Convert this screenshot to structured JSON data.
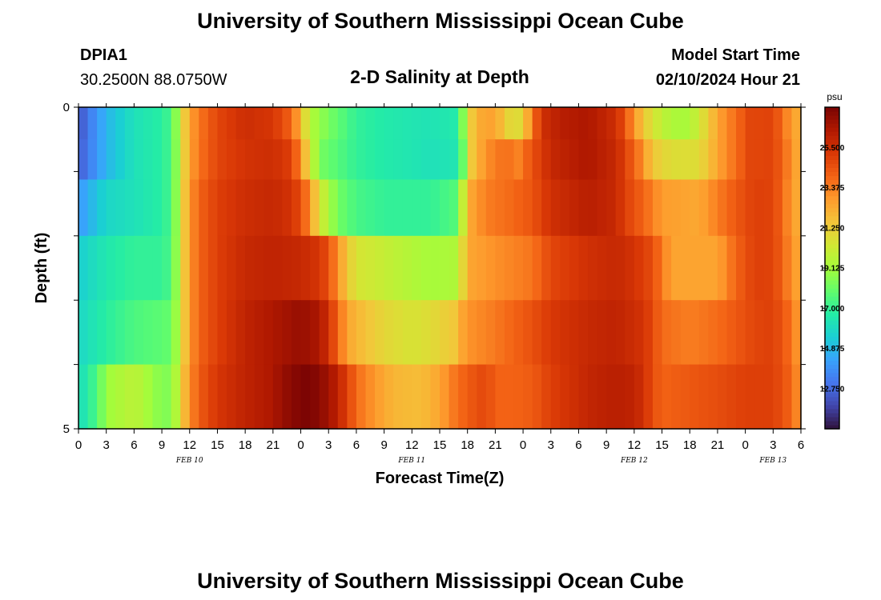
{
  "header": {
    "title": "University of Southern Mississippi Ocean Cube",
    "station_id": "DPIA1",
    "coordinates": "30.2500N  88.0750W",
    "plot_title": "2-D Salinity at Depth",
    "model_start_label": "Model Start Time",
    "model_start_value": "02/10/2024 Hour 21"
  },
  "footer": {
    "title": "University of Southern Mississippi Ocean Cube"
  },
  "chart_data": {
    "type": "heatmap",
    "title": "2-D Salinity at Depth",
    "xlabel": "Forecast Time(Z)",
    "ylabel": "Depth (ft)",
    "x_tick_labels": [
      "0",
      "3",
      "6",
      "9",
      "12",
      "15",
      "18",
      "21",
      "0",
      "3",
      "6",
      "9",
      "12",
      "15",
      "18",
      "21",
      "0",
      "3",
      "6",
      "9",
      "12",
      "15",
      "18",
      "21",
      "0",
      "3",
      "6"
    ],
    "date_labels": [
      {
        "label": "FEB 10",
        "hour": 12
      },
      {
        "label": "FEB 11",
        "hour": 36
      },
      {
        "label": "FEB 12",
        "hour": 60
      },
      {
        "label": "FEB 13",
        "hour": 75
      }
    ],
    "x_range_hours": [
      0,
      78
    ],
    "y_tick_labels": [
      "0",
      "5"
    ],
    "y_range_ft": [
      0,
      5
    ],
    "colorbar": {
      "unit": "psu",
      "min": 10.625,
      "max": 27.625,
      "tick_values": [
        "12.750",
        "14.875",
        "17.000",
        "19.125",
        "21.250",
        "23.375",
        "25.500"
      ],
      "colormap": [
        "#30123b",
        "#4145ab",
        "#4675ed",
        "#39a2fc",
        "#1bcfd4",
        "#24eca6",
        "#61fc6c",
        "#a4fc3b",
        "#d1e834",
        "#f3c63a",
        "#fe9b2d",
        "#f36315",
        "#d93806",
        "#b11901",
        "#7a0403"
      ]
    },
    "depth_rows_ft": [
      0.25,
      0.75,
      1.5,
      2.5,
      3.5,
      4.5
    ],
    "row_keyframes": [
      [
        [
          0,
          12.2
        ],
        [
          3,
          14.8
        ],
        [
          6,
          16.2
        ],
        [
          9,
          16.8
        ],
        [
          10.2,
          17.5
        ],
        [
          11,
          20.5
        ],
        [
          12,
          22.5
        ],
        [
          13,
          23.5
        ],
        [
          15,
          24.8
        ],
        [
          18,
          25.6
        ],
        [
          21,
          25.3
        ],
        [
          23,
          24.0
        ],
        [
          24,
          22.0
        ],
        [
          25,
          19.5
        ],
        [
          27,
          18.3
        ],
        [
          30,
          17.0
        ],
        [
          33,
          16.6
        ],
        [
          36,
          16.4
        ],
        [
          38,
          16.3
        ],
        [
          41,
          16.6
        ],
        [
          41.5,
          18.5
        ],
        [
          42.5,
          21.5
        ],
        [
          44,
          22.8
        ],
        [
          45.5,
          22.0
        ],
        [
          47,
          20.5
        ],
        [
          48,
          21.2
        ],
        [
          49,
          23.5
        ],
        [
          50,
          25.5
        ],
        [
          52,
          26.2
        ],
        [
          55,
          26.5
        ],
        [
          58,
          25.6
        ],
        [
          59,
          24.5
        ],
        [
          60,
          22.8
        ],
        [
          61.5,
          21.0
        ],
        [
          63,
          19.8
        ],
        [
          65,
          19.2
        ],
        [
          66,
          19.4
        ],
        [
          67.5,
          20.8
        ],
        [
          69,
          22.5
        ],
        [
          71,
          23.8
        ],
        [
          72.5,
          24.8
        ],
        [
          75,
          24.9
        ],
        [
          76.5,
          23.2
        ],
        [
          78,
          22.0
        ]
      ],
      [
        [
          0,
          12.4
        ],
        [
          3,
          14.8
        ],
        [
          6,
          16.2
        ],
        [
          9,
          16.8
        ],
        [
          10.2,
          17.5
        ],
        [
          11,
          20.3
        ],
        [
          12,
          22.5
        ],
        [
          13,
          23.6
        ],
        [
          15,
          24.8
        ],
        [
          18,
          25.4
        ],
        [
          21,
          25.6
        ],
        [
          23,
          25.0
        ],
        [
          24,
          23.0
        ],
        [
          25,
          20.5
        ],
        [
          26,
          18.3
        ],
        [
          30,
          17.0
        ],
        [
          33,
          16.6
        ],
        [
          36,
          16.4
        ],
        [
          38,
          16.2
        ],
        [
          41,
          16.4
        ],
        [
          41.5,
          18.0
        ],
        [
          42.5,
          21.5
        ],
        [
          44,
          23.0
        ],
        [
          46,
          23.8
        ],
        [
          47.5,
          23.3
        ],
        [
          49,
          24.5
        ],
        [
          51,
          25.8
        ],
        [
          55,
          26.5
        ],
        [
          58,
          25.8
        ],
        [
          59,
          25.0
        ],
        [
          60.5,
          23.5
        ],
        [
          62,
          21.5
        ],
        [
          64,
          20.7
        ],
        [
          67,
          20.8
        ],
        [
          69,
          22.5
        ],
        [
          71,
          23.8
        ],
        [
          72.5,
          24.8
        ],
        [
          75,
          24.9
        ],
        [
          76.5,
          23.5
        ],
        [
          78,
          22.0
        ]
      ],
      [
        [
          0,
          14.0
        ],
        [
          3,
          15.8
        ],
        [
          6,
          16.2
        ],
        [
          9,
          16.8
        ],
        [
          10.2,
          17.5
        ],
        [
          11,
          20.5
        ],
        [
          12,
          22.8
        ],
        [
          13,
          24.0
        ],
        [
          15,
          25.0
        ],
        [
          18,
          25.6
        ],
        [
          21,
          25.8
        ],
        [
          23,
          25.4
        ],
        [
          24,
          24.6
        ],
        [
          25,
          23.0
        ],
        [
          26,
          20.5
        ],
        [
          28,
          18.2
        ],
        [
          30,
          17.4
        ],
        [
          33,
          17.0
        ],
        [
          36,
          17.0
        ],
        [
          38,
          17.0
        ],
        [
          40.5,
          17.6
        ],
        [
          41.5,
          20.0
        ],
        [
          42.5,
          22.5
        ],
        [
          44,
          23.4
        ],
        [
          47,
          23.9
        ],
        [
          49,
          24.4
        ],
        [
          51,
          25.5
        ],
        [
          55,
          26.2
        ],
        [
          58,
          25.8
        ],
        [
          59,
          25.0
        ],
        [
          61,
          24.0
        ],
        [
          63,
          22.7
        ],
        [
          67,
          22.4
        ],
        [
          69,
          23.4
        ],
        [
          71,
          24.3
        ],
        [
          73,
          25.0
        ],
        [
          75,
          24.9
        ],
        [
          76.5,
          23.3
        ],
        [
          78,
          22.0
        ]
      ],
      [
        [
          0,
          15.5
        ],
        [
          3,
          16.5
        ],
        [
          6,
          17.0
        ],
        [
          9,
          17.0
        ],
        [
          10.2,
          17.6
        ],
        [
          11,
          20.5
        ],
        [
          12,
          22.8
        ],
        [
          13,
          24.0
        ],
        [
          15,
          25.0
        ],
        [
          18,
          25.8
        ],
        [
          21,
          26.0
        ],
        [
          24,
          25.8
        ],
        [
          26,
          25.3
        ],
        [
          27,
          24.5
        ],
        [
          28,
          23.0
        ],
        [
          29,
          21.5
        ],
        [
          30,
          20.5
        ],
        [
          33,
          20.0
        ],
        [
          36,
          19.5
        ],
        [
          38,
          19.2
        ],
        [
          40.5,
          19.4
        ],
        [
          41.5,
          21.0
        ],
        [
          42.5,
          22.5
        ],
        [
          45,
          23.0
        ],
        [
          49,
          23.6
        ],
        [
          51,
          24.8
        ],
        [
          55,
          25.5
        ],
        [
          58,
          25.8
        ],
        [
          60,
          25.4
        ],
        [
          62,
          24.6
        ],
        [
          63,
          23.5
        ],
        [
          64,
          22.5
        ],
        [
          69,
          22.5
        ],
        [
          71,
          24.0
        ],
        [
          73,
          25.0
        ],
        [
          75,
          24.9
        ],
        [
          76.5,
          23.5
        ],
        [
          78,
          22.2
        ]
      ],
      [
        [
          0,
          15.8
        ],
        [
          3,
          16.8
        ],
        [
          6,
          17.5
        ],
        [
          9,
          17.8
        ],
        [
          10.2,
          18.0
        ],
        [
          11,
          20.5
        ],
        [
          12,
          22.8
        ],
        [
          13,
          24.0
        ],
        [
          15,
          25.0
        ],
        [
          18,
          26.0
        ],
        [
          21,
          26.5
        ],
        [
          24,
          27.0
        ],
        [
          26,
          26.5
        ],
        [
          27,
          25.5
        ],
        [
          28,
          24.0
        ],
        [
          29,
          22.5
        ],
        [
          30,
          22.0
        ],
        [
          33,
          21.0
        ],
        [
          36,
          20.5
        ],
        [
          38,
          20.8
        ],
        [
          40.5,
          21.5
        ],
        [
          41.5,
          22.5
        ],
        [
          42.5,
          23.0
        ],
        [
          45,
          23.5
        ],
        [
          49,
          24.5
        ],
        [
          51,
          25.2
        ],
        [
          55,
          25.8
        ],
        [
          58,
          26.0
        ],
        [
          61,
          25.4
        ],
        [
          62,
          24.7
        ],
        [
          63,
          23.8
        ],
        [
          66,
          23.4
        ],
        [
          69,
          23.8
        ],
        [
          71,
          24.3
        ],
        [
          73,
          24.8
        ],
        [
          75,
          25.0
        ],
        [
          76.5,
          24.0
        ],
        [
          78,
          22.5
        ]
      ],
      [
        [
          0,
          16.0
        ],
        [
          2,
          17.5
        ],
        [
          3,
          19.0
        ],
        [
          6,
          19.8
        ],
        [
          9,
          18.5
        ],
        [
          10.2,
          18.5
        ],
        [
          11,
          21.0
        ],
        [
          12,
          23.0
        ],
        [
          13,
          24.2
        ],
        [
          15,
          25.3
        ],
        [
          18,
          26.0
        ],
        [
          21,
          26.5
        ],
        [
          22,
          27.0
        ],
        [
          24,
          27.5
        ],
        [
          25,
          27.6
        ],
        [
          27,
          26.8
        ],
        [
          28,
          26.0
        ],
        [
          29,
          25.0
        ],
        [
          30,
          23.8
        ],
        [
          32,
          22.8
        ],
        [
          34,
          22.0
        ],
        [
          37,
          21.8
        ],
        [
          39,
          22.5
        ],
        [
          40.5,
          23.5
        ],
        [
          42,
          24.2
        ],
        [
          44,
          24.8
        ],
        [
          45,
          24.0
        ],
        [
          47,
          24.0
        ],
        [
          49,
          24.2
        ],
        [
          51,
          25.0
        ],
        [
          55,
          25.9
        ],
        [
          58,
          26.2
        ],
        [
          60,
          26.0
        ],
        [
          61,
          25.5
        ],
        [
          62,
          24.6
        ],
        [
          63,
          24.0
        ],
        [
          66,
          24.3
        ],
        [
          69,
          24.6
        ],
        [
          72,
          25.0
        ],
        [
          75,
          25.0
        ],
        [
          76.5,
          24.2
        ],
        [
          78,
          22.8
        ]
      ]
    ]
  }
}
